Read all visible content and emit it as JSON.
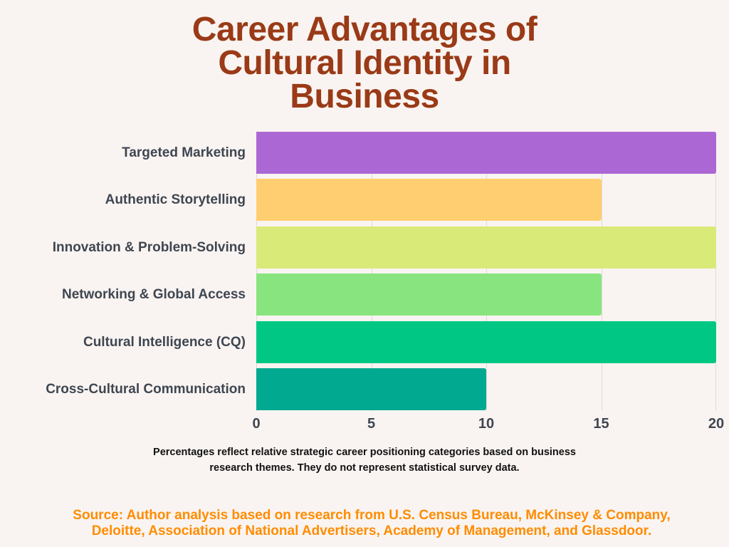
{
  "title": {
    "lines": [
      "Career Advantages of",
      "Cultural Identity in",
      "Business"
    ]
  },
  "colors": {
    "background": "#f9f4f1",
    "title": "#9a3a17",
    "labels": "#3f4651",
    "source": "#ff8c00",
    "gridline": "#dedada"
  },
  "chart_data": {
    "type": "bar",
    "orientation": "horizontal",
    "title": "Career Advantages of Cultural Identity in Business",
    "categories": [
      "Targeted Marketing",
      "Authentic Storytelling",
      "Innovation & Problem-Solving",
      "Networking & Global Access",
      "Cultural Intelligence (CQ)",
      "Cross-Cultural Communication"
    ],
    "values": [
      20,
      15,
      20,
      15,
      20,
      10
    ],
    "bar_colors": [
      "#ab68d5",
      "#ffce70",
      "#d9ea78",
      "#88e47e",
      "#00c884",
      "#00a98f"
    ],
    "xlabel": "",
    "ylabel": "",
    "xlim": [
      0,
      20
    ],
    "x_ticks": [
      "0",
      "5",
      "10",
      "15",
      "20"
    ],
    "grid": "vertical",
    "legend": "none"
  },
  "note": {
    "lines": [
      "Percentages reflect relative strategic career positioning categories based on business",
      "research themes. They do not represent statistical survey data."
    ]
  },
  "source": {
    "lines": [
      "Source: Author analysis based on research from U.S. Census Bureau, McKinsey & Company,",
      "Deloitte, Association of National Advertisers, Academy of Management, and Glassdoor."
    ]
  }
}
